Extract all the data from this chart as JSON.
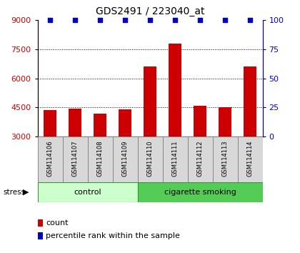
{
  "title": "GDS2491 / 223040_at",
  "samples": [
    "GSM114106",
    "GSM114107",
    "GSM114108",
    "GSM114109",
    "GSM114110",
    "GSM114111",
    "GSM114112",
    "GSM114113",
    "GSM114114"
  ],
  "counts": [
    4370,
    4430,
    4200,
    4400,
    6600,
    7800,
    4600,
    4530,
    6600
  ],
  "percentile_ranks": [
    100,
    100,
    100,
    100,
    100,
    100,
    100,
    100,
    100
  ],
  "bar_color": "#cc0000",
  "dot_color": "#0000cc",
  "ylim_left": [
    3000,
    9000
  ],
  "ylim_right": [
    0,
    100
  ],
  "yticks_left": [
    3000,
    4500,
    6000,
    7500,
    9000
  ],
  "yticks_right": [
    0,
    25,
    50,
    75,
    100
  ],
  "control_color_light": "#ccffcc",
  "control_color_dark": "#55cc55",
  "stress_label": "stress",
  "legend_count_label": "count",
  "legend_pct_label": "percentile rank within the sample",
  "tick_label_color_left": "#cc0000",
  "tick_label_color_right": "#0000cc",
  "title_color": "#000000",
  "sample_box_color": "#d8d8d8",
  "sample_box_edge": "#888888"
}
